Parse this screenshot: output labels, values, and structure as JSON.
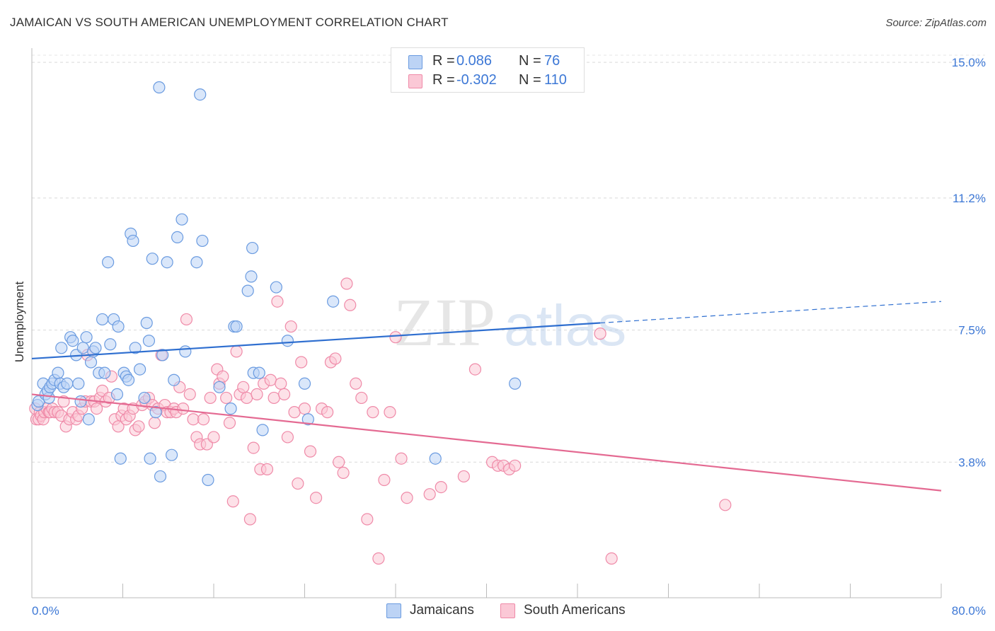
{
  "header": {
    "title": "JAMAICAN VS SOUTH AMERICAN UNEMPLOYMENT CORRELATION CHART",
    "source": "Source: ZipAtlas.com"
  },
  "watermark": {
    "zip": "ZIP",
    "atlas": "atlas"
  },
  "legend_top": [
    {
      "r_label": "R =",
      "r_value": "0.086",
      "n_label": "N =",
      "n_value": "76",
      "color": "#6a9be0",
      "fill": "#bcd3f5"
    },
    {
      "r_label": "R =",
      "r_value": "-0.302",
      "n_label": "N =",
      "n_value": "110",
      "color": "#ef8aa8",
      "fill": "#fbc8d6"
    }
  ],
  "legend_bottom": [
    {
      "label": "Jamaicans",
      "color": "#6a9be0",
      "fill": "#bcd3f5"
    },
    {
      "label": "South Americans",
      "color": "#ef8aa8",
      "fill": "#fbc8d6"
    }
  ],
  "chart_data": {
    "type": "scatter",
    "title": "JAMAICAN VS SOUTH AMERICAN UNEMPLOYMENT CORRELATION CHART",
    "xlabel": "",
    "ylabel": "Unemployment",
    "xlim": [
      0,
      80
    ],
    "ylim": [
      0,
      15.4
    ],
    "x_tick_labels": [
      "0.0%",
      "80.0%"
    ],
    "y_ticks": [
      3.8,
      7.5,
      11.2,
      15.0
    ],
    "y_tick_labels": [
      "3.8%",
      "7.5%",
      "11.2%",
      "15.0%"
    ],
    "grid": "horizontal dashed",
    "value_color": "#3d78d6",
    "series": [
      {
        "name": "Jamaicans",
        "color": "#6a9be0",
        "fill": "#bcd3f5",
        "trend": {
          "x": [
            0,
            50,
            80
          ],
          "y": [
            6.7,
            7.7,
            8.3
          ],
          "solid_until": 50
        },
        "points": [
          [
            0.5,
            5.4
          ],
          [
            0.6,
            5.5
          ],
          [
            1.0,
            6.0
          ],
          [
            1.2,
            5.7
          ],
          [
            1.5,
            5.6
          ],
          [
            1.4,
            5.8
          ],
          [
            1.6,
            5.9
          ],
          [
            1.8,
            6.0
          ],
          [
            2.0,
            6.1
          ],
          [
            2.3,
            6.3
          ],
          [
            2.5,
            6.0
          ],
          [
            2.6,
            7.0
          ],
          [
            2.8,
            5.9
          ],
          [
            3.1,
            6.0
          ],
          [
            3.4,
            7.3
          ],
          [
            3.6,
            7.2
          ],
          [
            3.9,
            6.8
          ],
          [
            4.1,
            6.0
          ],
          [
            4.3,
            5.5
          ],
          [
            4.5,
            7.0
          ],
          [
            4.8,
            7.3
          ],
          [
            5.0,
            5.0
          ],
          [
            5.2,
            6.6
          ],
          [
            5.4,
            6.9
          ],
          [
            5.6,
            7.0
          ],
          [
            5.9,
            6.3
          ],
          [
            6.2,
            7.8
          ],
          [
            6.4,
            6.3
          ],
          [
            6.7,
            9.4
          ],
          [
            6.9,
            7.1
          ],
          [
            7.2,
            7.8
          ],
          [
            7.5,
            5.7
          ],
          [
            7.6,
            7.6
          ],
          [
            7.8,
            3.9
          ],
          [
            8.1,
            6.3
          ],
          [
            8.3,
            6.2
          ],
          [
            8.5,
            6.1
          ],
          [
            8.7,
            10.2
          ],
          [
            8.9,
            10.0
          ],
          [
            9.1,
            7.0
          ],
          [
            9.5,
            6.4
          ],
          [
            9.9,
            5.6
          ],
          [
            10.1,
            7.7
          ],
          [
            10.3,
            7.2
          ],
          [
            10.4,
            3.9
          ],
          [
            10.6,
            9.5
          ],
          [
            10.9,
            5.2
          ],
          [
            11.2,
            14.3
          ],
          [
            11.3,
            3.4
          ],
          [
            11.5,
            6.8
          ],
          [
            11.9,
            9.4
          ],
          [
            12.3,
            4.0
          ],
          [
            12.5,
            6.1
          ],
          [
            12.8,
            10.1
          ],
          [
            13.2,
            10.6
          ],
          [
            13.5,
            6.9
          ],
          [
            14.5,
            9.4
          ],
          [
            14.8,
            14.1
          ],
          [
            15.0,
            10.0
          ],
          [
            15.5,
            3.3
          ],
          [
            16.5,
            5.9
          ],
          [
            17.5,
            5.3
          ],
          [
            17.8,
            7.6
          ],
          [
            18.0,
            7.6
          ],
          [
            19.0,
            8.6
          ],
          [
            19.3,
            9.0
          ],
          [
            19.4,
            9.8
          ],
          [
            19.5,
            6.3
          ],
          [
            20.0,
            6.3
          ],
          [
            20.3,
            4.7
          ],
          [
            21.5,
            8.7
          ],
          [
            22.5,
            7.2
          ],
          [
            24.0,
            6.0
          ],
          [
            24.3,
            5.0
          ],
          [
            26.5,
            8.3
          ],
          [
            35.5,
            3.9
          ],
          [
            42.5,
            6.0
          ]
        ]
      },
      {
        "name": "South Americans",
        "color": "#ef8aa8",
        "fill": "#fbc8d6",
        "trend": {
          "x": [
            0,
            80
          ],
          "y": [
            5.7,
            3.0
          ]
        },
        "points": [
          [
            0.3,
            5.3
          ],
          [
            0.4,
            5.0
          ],
          [
            0.6,
            5.0
          ],
          [
            0.7,
            5.2
          ],
          [
            0.8,
            5.1
          ],
          [
            1.0,
            5.0
          ],
          [
            1.1,
            5.2
          ],
          [
            1.3,
            5.3
          ],
          [
            1.5,
            5.2
          ],
          [
            1.6,
            5.2
          ],
          [
            1.8,
            5.3
          ],
          [
            2.0,
            5.2
          ],
          [
            2.3,
            5.2
          ],
          [
            2.6,
            5.1
          ],
          [
            2.8,
            5.5
          ],
          [
            3.0,
            4.8
          ],
          [
            3.3,
            5.0
          ],
          [
            3.6,
            5.2
          ],
          [
            3.9,
            5.0
          ],
          [
            4.1,
            5.1
          ],
          [
            4.4,
            5.3
          ],
          [
            4.7,
            5.5
          ],
          [
            4.9,
            6.8
          ],
          [
            5.2,
            5.5
          ],
          [
            5.5,
            5.5
          ],
          [
            5.7,
            5.3
          ],
          [
            6.0,
            5.6
          ],
          [
            6.2,
            5.8
          ],
          [
            6.5,
            5.5
          ],
          [
            6.8,
            5.6
          ],
          [
            7.0,
            6.2
          ],
          [
            7.3,
            5.0
          ],
          [
            7.6,
            4.8
          ],
          [
            7.9,
            5.1
          ],
          [
            8.1,
            5.3
          ],
          [
            8.3,
            5.0
          ],
          [
            8.6,
            5.1
          ],
          [
            8.9,
            5.3
          ],
          [
            9.1,
            4.7
          ],
          [
            9.4,
            4.8
          ],
          [
            9.7,
            5.4
          ],
          [
            10.0,
            5.5
          ],
          [
            10.3,
            5.6
          ],
          [
            10.6,
            5.4
          ],
          [
            10.8,
            4.9
          ],
          [
            11.1,
            5.3
          ],
          [
            11.4,
            6.8
          ],
          [
            11.7,
            5.4
          ],
          [
            11.9,
            5.2
          ],
          [
            12.2,
            5.2
          ],
          [
            12.5,
            5.3
          ],
          [
            12.7,
            5.2
          ],
          [
            13.0,
            5.9
          ],
          [
            13.3,
            5.3
          ],
          [
            13.6,
            7.8
          ],
          [
            13.9,
            5.7
          ],
          [
            14.2,
            5.0
          ],
          [
            14.5,
            4.5
          ],
          [
            14.8,
            4.3
          ],
          [
            15.1,
            5.0
          ],
          [
            15.4,
            4.3
          ],
          [
            15.7,
            5.6
          ],
          [
            16.0,
            4.5
          ],
          [
            16.3,
            6.4
          ],
          [
            16.5,
            6.0
          ],
          [
            16.8,
            6.2
          ],
          [
            17.1,
            5.6
          ],
          [
            17.4,
            4.9
          ],
          [
            17.7,
            2.7
          ],
          [
            18.0,
            6.9
          ],
          [
            18.3,
            5.7
          ],
          [
            18.6,
            5.9
          ],
          [
            18.9,
            5.6
          ],
          [
            19.2,
            2.2
          ],
          [
            19.5,
            4.2
          ],
          [
            19.8,
            5.7
          ],
          [
            20.1,
            3.6
          ],
          [
            20.4,
            6.0
          ],
          [
            20.7,
            3.6
          ],
          [
            21.0,
            6.1
          ],
          [
            21.3,
            5.6
          ],
          [
            21.6,
            8.3
          ],
          [
            21.9,
            6.0
          ],
          [
            22.2,
            5.7
          ],
          [
            22.5,
            4.5
          ],
          [
            22.8,
            7.6
          ],
          [
            23.1,
            5.2
          ],
          [
            23.4,
            3.2
          ],
          [
            23.7,
            6.6
          ],
          [
            24.0,
            5.3
          ],
          [
            24.5,
            4.1
          ],
          [
            25.0,
            2.8
          ],
          [
            25.5,
            5.3
          ],
          [
            26.0,
            5.2
          ],
          [
            26.3,
            6.6
          ],
          [
            26.7,
            6.7
          ],
          [
            27.0,
            3.8
          ],
          [
            27.4,
            3.5
          ],
          [
            27.7,
            8.8
          ],
          [
            28.0,
            8.2
          ],
          [
            28.5,
            6.0
          ],
          [
            29.0,
            5.6
          ],
          [
            29.5,
            2.2
          ],
          [
            30.0,
            5.2
          ],
          [
            30.5,
            1.1
          ],
          [
            31.0,
            3.3
          ],
          [
            31.5,
            5.2
          ],
          [
            32.0,
            7.3
          ],
          [
            32.5,
            3.9
          ],
          [
            33.0,
            2.8
          ],
          [
            35.0,
            2.9
          ],
          [
            36.0,
            3.1
          ],
          [
            38.0,
            3.4
          ],
          [
            39.0,
            6.4
          ],
          [
            40.5,
            3.8
          ],
          [
            41.0,
            3.7
          ],
          [
            41.5,
            3.7
          ],
          [
            42.0,
            3.6
          ],
          [
            42.5,
            3.7
          ],
          [
            50.0,
            7.4
          ],
          [
            51.0,
            1.1
          ],
          [
            61.0,
            2.6
          ]
        ]
      }
    ]
  }
}
